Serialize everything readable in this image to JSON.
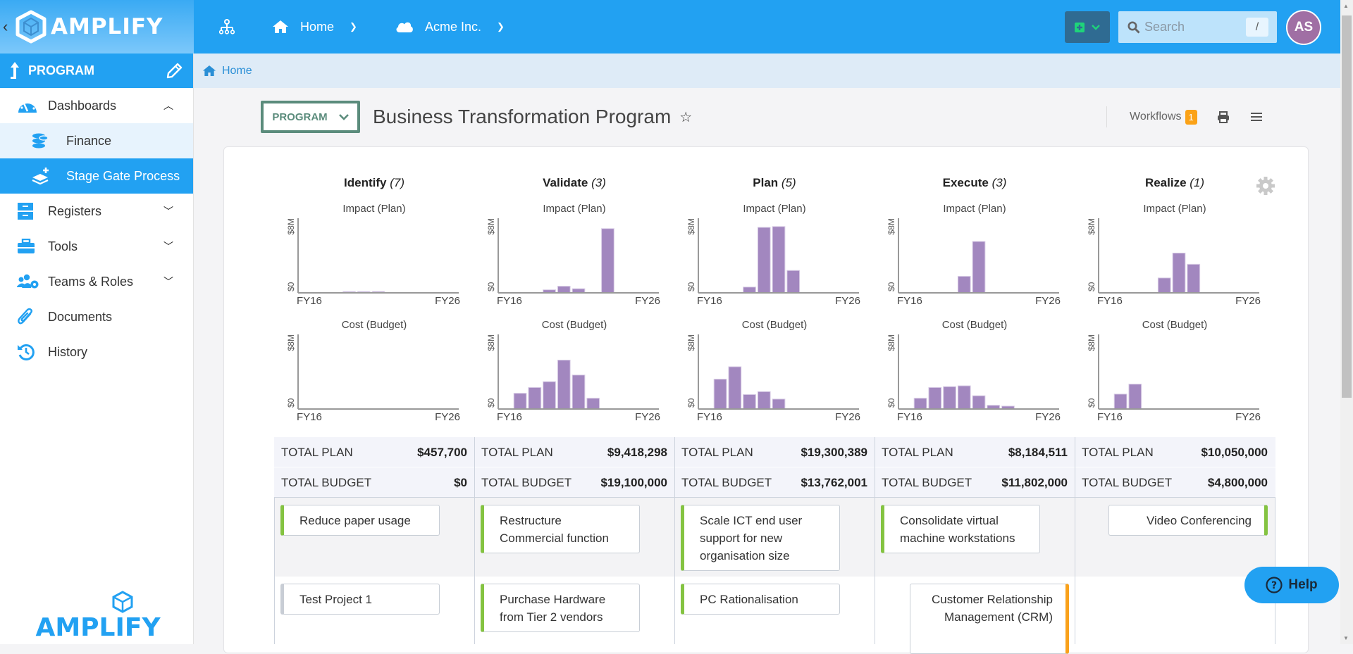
{
  "header": {
    "brand": "AMPLIFY",
    "nav": [
      {
        "icon": "sitemap-icon",
        "label": ""
      },
      {
        "icon": "home-icon",
        "label": "Home"
      },
      {
        "icon": "cloud-icon",
        "label": "Acme Inc."
      }
    ],
    "search_placeholder": "Search",
    "search_shortcut": "/",
    "avatar_initials": "AS"
  },
  "sidebar": {
    "section": "PROGRAM",
    "items": [
      {
        "label": "Dashboards",
        "icon": "dashboard-gauge-icon",
        "expanded": true
      },
      {
        "label": "Finance",
        "icon": "coins-icon",
        "sub": true
      },
      {
        "label": "Stage Gate Process",
        "icon": "layers-plus-icon",
        "sub": true,
        "active": true
      },
      {
        "label": "Registers",
        "icon": "cabinet-icon"
      },
      {
        "label": "Tools",
        "icon": "toolbox-icon"
      },
      {
        "label": "Teams & Roles",
        "icon": "users-cog-icon"
      },
      {
        "label": "Documents",
        "icon": "paperclip-icon"
      },
      {
        "label": "History",
        "icon": "history-icon"
      }
    ],
    "footer_logo": "AMPLIFY"
  },
  "breadcrumb": {
    "home": "Home"
  },
  "page": {
    "type_selector": "PROGRAM",
    "title": "Business Transformation Program",
    "workflows_label": "Workflows",
    "workflows_count": "1"
  },
  "labels": {
    "total_plan": "TOTAL PLAN",
    "total_budget": "TOTAL BUDGET",
    "help": "Help"
  },
  "stages": [
    {
      "name": "Identify",
      "count": "(7)",
      "total_plan": "$457,700",
      "total_budget": "$0"
    },
    {
      "name": "Validate",
      "count": "(3)",
      "total_plan": "$9,418,298",
      "total_budget": "$19,100,000"
    },
    {
      "name": "Plan",
      "count": "(5)",
      "total_plan": "$19,300,389",
      "total_budget": "$13,762,001"
    },
    {
      "name": "Execute",
      "count": "(3)",
      "total_plan": "$8,184,511",
      "total_budget": "$11,802,000"
    },
    {
      "name": "Realize",
      "count": "(1)",
      "total_plan": "$10,050,000",
      "total_budget": "$4,800,000"
    }
  ],
  "projects": {
    "row1": [
      "Reduce paper usage",
      "Restructure Commercial function",
      "Scale ICT end user support for new organisation size",
      "Consolidate virtual machine workstations",
      "Video Conferencing"
    ],
    "row2": [
      "Test Project 1",
      "Purchase Hardware from Tier 2 vendors",
      "PC Rationalisation",
      "Customer Relationship Management (CRM)",
      ""
    ]
  },
  "colors": {
    "accent": "#22a1f2",
    "bar": "#a287bf",
    "status_green": "#84c341",
    "status_orange": "#f9a11b",
    "program_select": "#5b8c7c",
    "badge": "#fba217"
  },
  "chart_data": [
    {
      "type": "bar",
      "stage": "Identify",
      "title": "Impact (Plan)",
      "x": [
        "FY16",
        "FY17",
        "FY18",
        "FY19",
        "FY20",
        "FY21",
        "FY22",
        "FY23",
        "FY24",
        "FY25",
        "FY26"
      ],
      "values": [
        0,
        0,
        0,
        0.15,
        0.15,
        0.16,
        0,
        0,
        0,
        0,
        0
      ],
      "xticks": [
        "FY16",
        "FY26"
      ],
      "yticks": [
        "$0",
        "$8M"
      ],
      "ylabel_unit": "$M",
      "ylim": [
        0,
        9
      ]
    },
    {
      "type": "bar",
      "stage": "Identify",
      "title": "Cost (Budget)",
      "x": [
        "FY16",
        "FY17",
        "FY18",
        "FY19",
        "FY20",
        "FY21",
        "FY22",
        "FY23",
        "FY24",
        "FY25",
        "FY26"
      ],
      "values": [
        0,
        0,
        0,
        0,
        0,
        0,
        0,
        0,
        0,
        0,
        0
      ],
      "xticks": [
        "FY16",
        "FY26"
      ],
      "yticks": [
        "$0",
        "$8M"
      ],
      "ylim": [
        0,
        9
      ]
    },
    {
      "type": "bar",
      "stage": "Validate",
      "title": "Impact (Plan)",
      "x": [
        "FY16",
        "FY17",
        "FY18",
        "FY19",
        "FY20",
        "FY21",
        "FY22",
        "FY23",
        "FY24",
        "FY25",
        "FY26"
      ],
      "values": [
        0,
        0,
        0,
        0.37,
        0.8,
        0.5,
        0,
        7.75,
        0,
        0,
        0
      ],
      "xticks": [
        "FY16",
        "FY26"
      ],
      "yticks": [
        "$0",
        "$8M"
      ],
      "ylim": [
        0,
        9
      ]
    },
    {
      "type": "bar",
      "stage": "Validate",
      "title": "Cost (Budget)",
      "x": [
        "FY16",
        "FY17",
        "FY18",
        "FY19",
        "FY20",
        "FY21",
        "FY22",
        "FY23",
        "FY24",
        "FY25",
        "FY26"
      ],
      "values": [
        0,
        1.9,
        2.6,
        3.3,
        5.9,
        4.1,
        1.3,
        0,
        0,
        0,
        0
      ],
      "xticks": [
        "FY16",
        "FY26"
      ],
      "yticks": [
        "$0",
        "$8M"
      ],
      "ylim": [
        0,
        9
      ]
    },
    {
      "type": "bar",
      "stage": "Plan",
      "title": "Impact (Plan)",
      "x": [
        "FY16",
        "FY17",
        "FY18",
        "FY19",
        "FY20",
        "FY21",
        "FY22",
        "FY23",
        "FY24",
        "FY25",
        "FY26"
      ],
      "values": [
        0,
        0,
        0,
        0.7,
        7.9,
        8.0,
        2.7,
        0,
        0,
        0,
        0
      ],
      "xticks": [
        "FY16",
        "FY26"
      ],
      "yticks": [
        "$0",
        "$8M"
      ],
      "ylim": [
        0,
        9
      ]
    },
    {
      "type": "bar",
      "stage": "Plan",
      "title": "Cost (Budget)",
      "x": [
        "FY16",
        "FY17",
        "FY18",
        "FY19",
        "FY20",
        "FY21",
        "FY22",
        "FY23",
        "FY24",
        "FY25",
        "FY26"
      ],
      "values": [
        0,
        3.6,
        5.1,
        1.75,
        2.1,
        1.2,
        0,
        0,
        0,
        0,
        0
      ],
      "xticks": [
        "FY16",
        "FY26"
      ],
      "yticks": [
        "$0",
        "$8M"
      ],
      "ylim": [
        0,
        9
      ]
    },
    {
      "type": "bar",
      "stage": "Execute",
      "title": "Impact (Plan)",
      "x": [
        "FY16",
        "FY17",
        "FY18",
        "FY19",
        "FY20",
        "FY21",
        "FY22",
        "FY23",
        "FY24",
        "FY25",
        "FY26"
      ],
      "values": [
        0,
        0,
        0,
        0,
        2.0,
        6.2,
        0,
        0,
        0,
        0,
        0
      ],
      "xticks": [
        "FY16",
        "FY26"
      ],
      "yticks": [
        "$0",
        "$8M"
      ],
      "ylim": [
        0,
        9
      ]
    },
    {
      "type": "bar",
      "stage": "Execute",
      "title": "Cost (Budget)",
      "x": [
        "FY16",
        "FY17",
        "FY18",
        "FY19",
        "FY20",
        "FY21",
        "FY22",
        "FY23",
        "FY24",
        "FY25",
        "FY26"
      ],
      "values": [
        0,
        1.3,
        2.6,
        2.7,
        2.8,
        1.6,
        0.45,
        0.35,
        0,
        0,
        0
      ],
      "xticks": [
        "FY16",
        "FY26"
      ],
      "yticks": [
        "$0",
        "$8M"
      ],
      "ylim": [
        0,
        9
      ]
    },
    {
      "type": "bar",
      "stage": "Realize",
      "title": "Impact (Plan)",
      "x": [
        "FY16",
        "FY17",
        "FY18",
        "FY19",
        "FY20",
        "FY21",
        "FY22",
        "FY23",
        "FY24",
        "FY25",
        "FY26"
      ],
      "values": [
        0,
        0,
        0,
        0,
        1.8,
        4.8,
        3.45,
        0,
        0,
        0,
        0
      ],
      "xticks": [
        "FY16",
        "FY26"
      ],
      "yticks": [
        "$0",
        "$8M"
      ],
      "ylim": [
        0,
        9
      ]
    },
    {
      "type": "bar",
      "stage": "Realize",
      "title": "Cost (Budget)",
      "x": [
        "FY16",
        "FY17",
        "FY18",
        "FY19",
        "FY20",
        "FY21",
        "FY22",
        "FY23",
        "FY24",
        "FY25",
        "FY26"
      ],
      "values": [
        0,
        1.8,
        3.0,
        0,
        0,
        0,
        0,
        0,
        0,
        0,
        0
      ],
      "xticks": [
        "FY16",
        "FY26"
      ],
      "yticks": [
        "$0",
        "$8M"
      ],
      "ylim": [
        0,
        9
      ]
    }
  ]
}
